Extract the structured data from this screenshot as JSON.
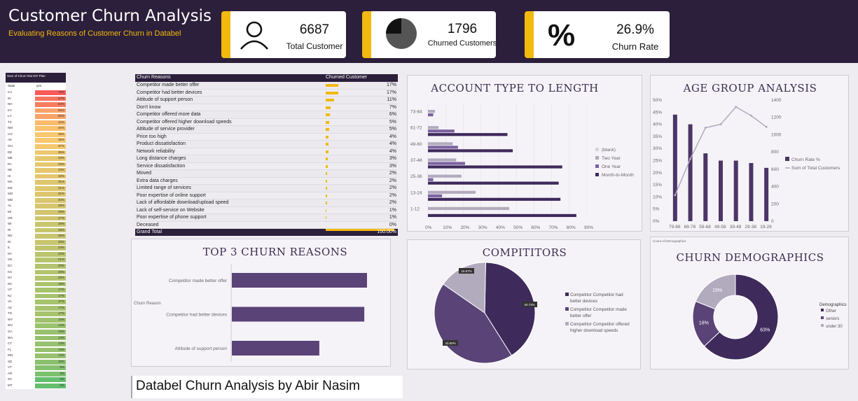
{
  "header": {
    "title": "Customer Churn Analysis",
    "subtitle": "Evaluating Reasons of Customer Churn in Databel"
  },
  "kpis": [
    {
      "value": "6687",
      "label": "Total Customer",
      "icon": "person-icon"
    },
    {
      "value": "1796",
      "label": "Churned Customers",
      "icon": "pie-icon"
    },
    {
      "value": "26.9%",
      "label": "Churn Rate",
      "icon": "percent-icon"
    }
  ],
  "heatmap": {
    "title": "Sum of Churn Rat INT Plan",
    "col_state": "State",
    "col_yes": "yes",
    "rows": [
      [
        "CA",
        "75%"
      ],
      [
        "IN",
        "67%"
      ],
      [
        "NH",
        "63%"
      ],
      [
        "KY",
        "50%"
      ],
      [
        "LA",
        "50%"
      ],
      [
        "TX",
        "42%"
      ],
      [
        "NM",
        "40%"
      ],
      [
        "CO",
        "38%"
      ],
      [
        "AK",
        "38%"
      ],
      [
        "OH",
        "37%"
      ],
      [
        "DE",
        "35%"
      ],
      [
        "ME",
        "33%"
      ],
      [
        "PA",
        "33%"
      ],
      [
        "NE",
        "33%"
      ],
      [
        "HI",
        "33%"
      ],
      [
        "MA",
        "31%"
      ],
      [
        "MS",
        "31%"
      ],
      [
        "MO",
        "31%"
      ],
      [
        "MD",
        "30%"
      ],
      [
        "AL",
        "29%"
      ],
      [
        "MI",
        "28%"
      ],
      [
        "OR",
        "27%"
      ],
      [
        "WI",
        "25%"
      ],
      [
        "RI",
        "25%"
      ],
      [
        "ND",
        "25%"
      ],
      [
        "ID",
        "25%"
      ],
      [
        "IL",
        "23%"
      ],
      [
        "NY",
        "22%"
      ],
      [
        "OK",
        "21%"
      ],
      [
        "DC",
        "20%"
      ],
      [
        "KS",
        "20%"
      ],
      [
        "NY",
        "20%"
      ],
      [
        "NC",
        "18%"
      ],
      [
        "UT",
        "17%"
      ],
      [
        "NJ",
        "17%"
      ],
      [
        "VA",
        "17%"
      ],
      [
        "AZ",
        "17%"
      ],
      [
        "TN",
        "17%"
      ],
      [
        "WY",
        "15%"
      ],
      [
        "WV",
        "14%"
      ],
      [
        "GA",
        "13%"
      ],
      [
        "WA",
        "13%"
      ],
      [
        "CT",
        "13%"
      ],
      [
        "FL",
        "13%"
      ],
      [
        "MN",
        "13%"
      ],
      [
        "SD",
        "10%"
      ],
      [
        "VT",
        "8%"
      ],
      [
        "AR",
        "6%"
      ],
      [
        "SC",
        "0%"
      ],
      [
        "MT",
        "0%"
      ]
    ]
  },
  "reasons_table": {
    "col1": "Churn Reasons",
    "col2": "Churned Customer",
    "rows": [
      [
        "Competitor made better offer",
        "17%",
        17
      ],
      [
        "Competitor had better devices",
        "17%",
        17
      ],
      [
        "Attitude of support person",
        "11%",
        11
      ],
      [
        "Don't know",
        "7%",
        7
      ],
      [
        "Competitor offered more data",
        "6%",
        6
      ],
      [
        "Competitor offered higher download speeds",
        "5%",
        5
      ],
      [
        "Attitude of service provider",
        "5%",
        5
      ],
      [
        "Price too high",
        "4%",
        4
      ],
      [
        "Product dissatisfaction",
        "4%",
        4
      ],
      [
        "Network reliability",
        "4%",
        4
      ],
      [
        "Long distance charges",
        "3%",
        3
      ],
      [
        "Service dissatisfaction",
        "3%",
        3
      ],
      [
        "Moved",
        "2%",
        2
      ],
      [
        "Extra data charges",
        "2%",
        2
      ],
      [
        "Limited range of services",
        "2%",
        2
      ],
      [
        "Poor expertise of online support",
        "2%",
        2
      ],
      [
        "Lack of affordable download/upload speed",
        "2%",
        2
      ],
      [
        "Lack of self-service on Website",
        "1%",
        1
      ],
      [
        "Poor expertise of phone support",
        "1%",
        1
      ],
      [
        "Deceased",
        "0%",
        0
      ]
    ],
    "total_label": "Grand Total",
    "total_value": "100.00%"
  },
  "colors": {
    "dark": "#2c1f3b",
    "accent": "#f2b90f",
    "purple": "#4b3566",
    "mid": "#7b62a0",
    "light": "#b2aabd"
  },
  "chart_data": [
    {
      "type": "bar",
      "title": "ACCOUNT TYPE TO LENGTH",
      "categories": [
        "73-84",
        "61-72",
        "49-60",
        "37-48",
        "25-36",
        "13-24",
        "1-12"
      ],
      "series": [
        {
          "name": "(blank)",
          "values": [
            0,
            0,
            0,
            0,
            0,
            0,
            0
          ]
        },
        {
          "name": "Two Year",
          "values": [
            4,
            6,
            14,
            16,
            19,
            27,
            46
          ]
        },
        {
          "name": "One Year",
          "values": [
            3,
            15,
            17,
            21,
            3,
            8,
            0
          ]
        },
        {
          "name": "Month-to-Month",
          "values": [
            0,
            45,
            48,
            76,
            74,
            75,
            84
          ]
        }
      ],
      "xticks": [
        "0%",
        "10%",
        "20%",
        "30%",
        "40%",
        "50%",
        "60%",
        "70%",
        "80%",
        "90%"
      ],
      "xlim": [
        0,
        90
      ]
    },
    {
      "type": "bar",
      "title": "AGE GROUP ANALYSIS",
      "categories": [
        "79-88",
        "69-78",
        "59-68",
        "49-58",
        "39-48",
        "29-38",
        "19-28"
      ],
      "series": [
        {
          "name": "Churn Rate %",
          "values": [
            44,
            40,
            28,
            25,
            25,
            24,
            22
          ]
        },
        {
          "name": "Sum of Total Customers",
          "values": [
            300,
            720,
            1080,
            1120,
            1320,
            1220,
            1090
          ]
        }
      ],
      "y1ticks": [
        "0%",
        "5%",
        "10%",
        "15%",
        "20%",
        "25%",
        "30%",
        "35%",
        "40%",
        "45%",
        "50%"
      ],
      "y2ticks": [
        "0",
        "200",
        "400",
        "600",
        "800",
        "1000",
        "1200",
        "1400"
      ]
    },
    {
      "type": "bar",
      "title": "TOP 3 CHURN REASONS",
      "ylabel": "Churn Reason",
      "categories": [
        "Competitor made better offer",
        "Competitor had better devices",
        "Attitude of support person"
      ],
      "values": [
        17,
        17,
        11
      ]
    },
    {
      "type": "pie",
      "title": "COMPITITORS",
      "slices": [
        {
          "name": "Competitor Competitor had better devices",
          "value": 40.73,
          "label": "40.73%"
        },
        {
          "name": "Competitor Competitor made better offer",
          "value": 43.6,
          "label": "43.60%"
        },
        {
          "name": "Competitor Competitor offered higher download speeds",
          "value": 15.67,
          "label": "15.67%"
        }
      ]
    },
    {
      "type": "pie",
      "title": "CHURN DEMOGRAPHICS",
      "corner": "Count of Demographics",
      "legend_title": "Demographics",
      "slices": [
        {
          "name": "Other",
          "value": 63,
          "label": "63%"
        },
        {
          "name": "seniors",
          "value": 18,
          "label": "18%"
        },
        {
          "name": "under 30",
          "value": 19,
          "label": "19%"
        }
      ]
    }
  ],
  "footer": {
    "text": "Databel Churn Analysis by Abir Nasim"
  }
}
